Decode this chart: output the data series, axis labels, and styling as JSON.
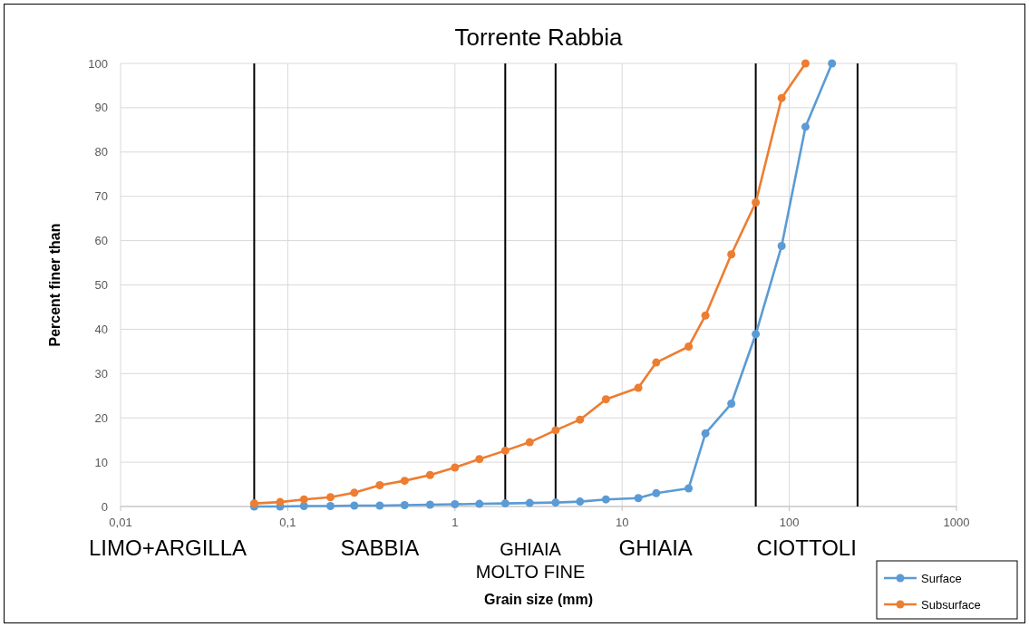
{
  "chart_data": {
    "type": "line",
    "title": "Torrente Rabbia",
    "xlabel": "Grain size (mm)",
    "ylabel": "Percent finer than",
    "log": "x",
    "xlim": [
      0.01,
      1000
    ],
    "xticks": [
      {
        "value": 0.01,
        "label": "0,01"
      },
      {
        "value": 0.1,
        "label": "0,1"
      },
      1,
      10,
      100,
      1000
    ],
    "ylim": [
      0,
      100
    ],
    "yticks": [
      0,
      10,
      20,
      30,
      40,
      50,
      60,
      70,
      80,
      90,
      100
    ],
    "grid": true,
    "legend": "bottom right",
    "marker": "circle",
    "line_style": "solid",
    "series": [
      {
        "name": "Surface",
        "color": "#5b9bd5",
        "x": [
          0.063,
          0.09,
          0.125,
          0.18,
          0.25,
          0.355,
          0.5,
          0.71,
          1,
          1.4,
          2,
          2.8,
          4,
          5.6,
          8,
          12.5,
          16,
          25,
          31.5,
          45,
          63,
          90,
          125,
          180
        ],
        "values": [
          0,
          0,
          0.1,
          0.1,
          0.2,
          0.2,
          0.3,
          0.4,
          0.5,
          0.6,
          0.7,
          0.8,
          0.9,
          1.1,
          1.6,
          1.9,
          3.0,
          4.1,
          16.5,
          23.2,
          38.9,
          58.8,
          85.7,
          100
        ]
      },
      {
        "name": "Subsurface",
        "color": "#ed7d31",
        "x": [
          0.063,
          0.09,
          0.125,
          0.18,
          0.25,
          0.355,
          0.5,
          0.71,
          1,
          1.4,
          2,
          2.8,
          4,
          5.6,
          8,
          12.5,
          16,
          25,
          31.5,
          45,
          63,
          90,
          125
        ],
        "values": [
          0.7,
          1.0,
          1.6,
          2.1,
          3.1,
          4.8,
          5.8,
          7.1,
          8.8,
          10.7,
          12.6,
          14.5,
          17.2,
          19.6,
          24.2,
          26.8,
          32.5,
          36.1,
          43.1,
          56.9,
          68.6,
          92.2,
          100
        ]
      }
    ],
    "ref_lines": [
      {
        "axis": "x",
        "value": 0.063,
        "color": "#000000"
      },
      {
        "axis": "x",
        "value": 2,
        "color": "#000000"
      },
      {
        "axis": "x",
        "value": 4,
        "color": "#000000"
      },
      {
        "axis": "x",
        "value": 63,
        "color": "#000000"
      },
      {
        "axis": "x",
        "value": 256,
        "color": "#000000"
      }
    ],
    "annotations": [
      "LIMO+ARGILLA",
      "SABBIA",
      "GHIAIA\nMOLTO FINE",
      "GHIAIA",
      "CIOTTOLI"
    ]
  }
}
